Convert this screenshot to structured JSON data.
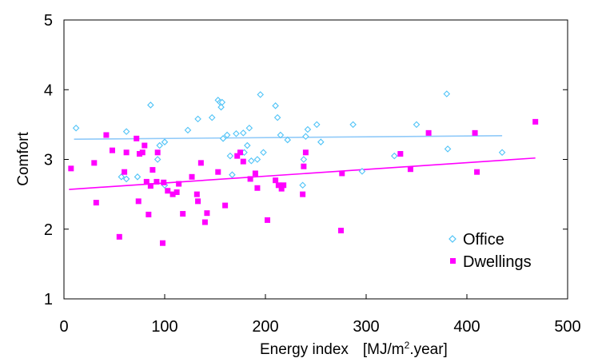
{
  "chart_data": {
    "type": "scatter",
    "title": "",
    "xlabel": "Energy index",
    "xlabel_unit_prefix": "[MJ/m",
    "xlabel_unit_sup": "2",
    "xlabel_unit_suffix": ".year]",
    "ylabel": "Comfort",
    "xlim": [
      0,
      500
    ],
    "ylim": [
      1,
      5
    ],
    "xticks": [
      0,
      100,
      200,
      300,
      400,
      500
    ],
    "yticks": [
      1,
      2,
      3,
      4,
      5
    ],
    "xtick_labels": [
      "0",
      "100",
      "200",
      "300",
      "400",
      "500"
    ],
    "ytick_labels": [
      "1",
      "2",
      "3",
      "4",
      "5"
    ],
    "grid": false,
    "legend_position": "bottom-right",
    "series": [
      {
        "name": "Office",
        "marker": "diamond",
        "color": "#4fc3f7",
        "points": [
          [
            12,
            3.45
          ],
          [
            57,
            2.75
          ],
          [
            62,
            2.72
          ],
          [
            62,
            3.4
          ],
          [
            73,
            2.75
          ],
          [
            86,
            3.78
          ],
          [
            93,
            3.0
          ],
          [
            95,
            3.2
          ],
          [
            100,
            3.25
          ],
          [
            100,
            2.63
          ],
          [
            123,
            3.42
          ],
          [
            133,
            3.58
          ],
          [
            147,
            3.6
          ],
          [
            153,
            3.85
          ],
          [
            155,
            3.82
          ],
          [
            156,
            3.75
          ],
          [
            157,
            3.82
          ],
          [
            158,
            3.3
          ],
          [
            162,
            3.35
          ],
          [
            165,
            3.05
          ],
          [
            167,
            2.78
          ],
          [
            171,
            3.37
          ],
          [
            178,
            3.38
          ],
          [
            179,
            3.1
          ],
          [
            182,
            3.2
          ],
          [
            184,
            3.45
          ],
          [
            186,
            2.98
          ],
          [
            192,
            3.0
          ],
          [
            195,
            3.93
          ],
          [
            198,
            3.1
          ],
          [
            210,
            3.77
          ],
          [
            212,
            3.6
          ],
          [
            215,
            3.35
          ],
          [
            222,
            3.28
          ],
          [
            237,
            2.63
          ],
          [
            238,
            3.0
          ],
          [
            240,
            3.33
          ],
          [
            242,
            3.43
          ],
          [
            251,
            3.5
          ],
          [
            255,
            3.25
          ],
          [
            287,
            3.5
          ],
          [
            296,
            2.83
          ],
          [
            328,
            3.05
          ],
          [
            350,
            3.5
          ],
          [
            380,
            3.94
          ],
          [
            381,
            3.15
          ],
          [
            435,
            3.1
          ]
        ],
        "trend": {
          "x": [
            10,
            435
          ],
          "y": [
            3.29,
            3.34
          ]
        }
      },
      {
        "name": "Dwellings",
        "marker": "square",
        "color": "#ff00ff",
        "points": [
          [
            7,
            2.87
          ],
          [
            30,
            2.95
          ],
          [
            32,
            2.38
          ],
          [
            42,
            3.35
          ],
          [
            48,
            3.13
          ],
          [
            55,
            1.89
          ],
          [
            60,
            2.82
          ],
          [
            62,
            3.1
          ],
          [
            72,
            3.3
          ],
          [
            74,
            2.4
          ],
          [
            75,
            3.08
          ],
          [
            78,
            3.1
          ],
          [
            80,
            3.2
          ],
          [
            82,
            2.68
          ],
          [
            84,
            2.21
          ],
          [
            86,
            2.62
          ],
          [
            88,
            2.85
          ],
          [
            92,
            2.68
          ],
          [
            93,
            3.1
          ],
          [
            98,
            1.8
          ],
          [
            99,
            2.67
          ],
          [
            103,
            2.55
          ],
          [
            108,
            2.5
          ],
          [
            112,
            2.53
          ],
          [
            114,
            2.65
          ],
          [
            118,
            2.22
          ],
          [
            127,
            2.75
          ],
          [
            132,
            2.5
          ],
          [
            133,
            2.4
          ],
          [
            136,
            2.95
          ],
          [
            140,
            2.1
          ],
          [
            142,
            2.23
          ],
          [
            153,
            2.82
          ],
          [
            160,
            2.34
          ],
          [
            172,
            3.05
          ],
          [
            175,
            3.1
          ],
          [
            178,
            2.97
          ],
          [
            185,
            2.72
          ],
          [
            190,
            2.8
          ],
          [
            192,
            2.59
          ],
          [
            202,
            2.13
          ],
          [
            210,
            2.7
          ],
          [
            213,
            2.63
          ],
          [
            216,
            2.58
          ],
          [
            218,
            2.63
          ],
          [
            237,
            2.5
          ],
          [
            238,
            2.9
          ],
          [
            240,
            3.1
          ],
          [
            275,
            1.98
          ],
          [
            276,
            2.8
          ],
          [
            334,
            3.08
          ],
          [
            344,
            2.86
          ],
          [
            362,
            3.38
          ],
          [
            408,
            3.38
          ],
          [
            410,
            2.82
          ],
          [
            468,
            3.54
          ]
        ],
        "trend": {
          "x": [
            5,
            468
          ],
          "y": [
            2.57,
            3.02
          ]
        }
      }
    ]
  }
}
